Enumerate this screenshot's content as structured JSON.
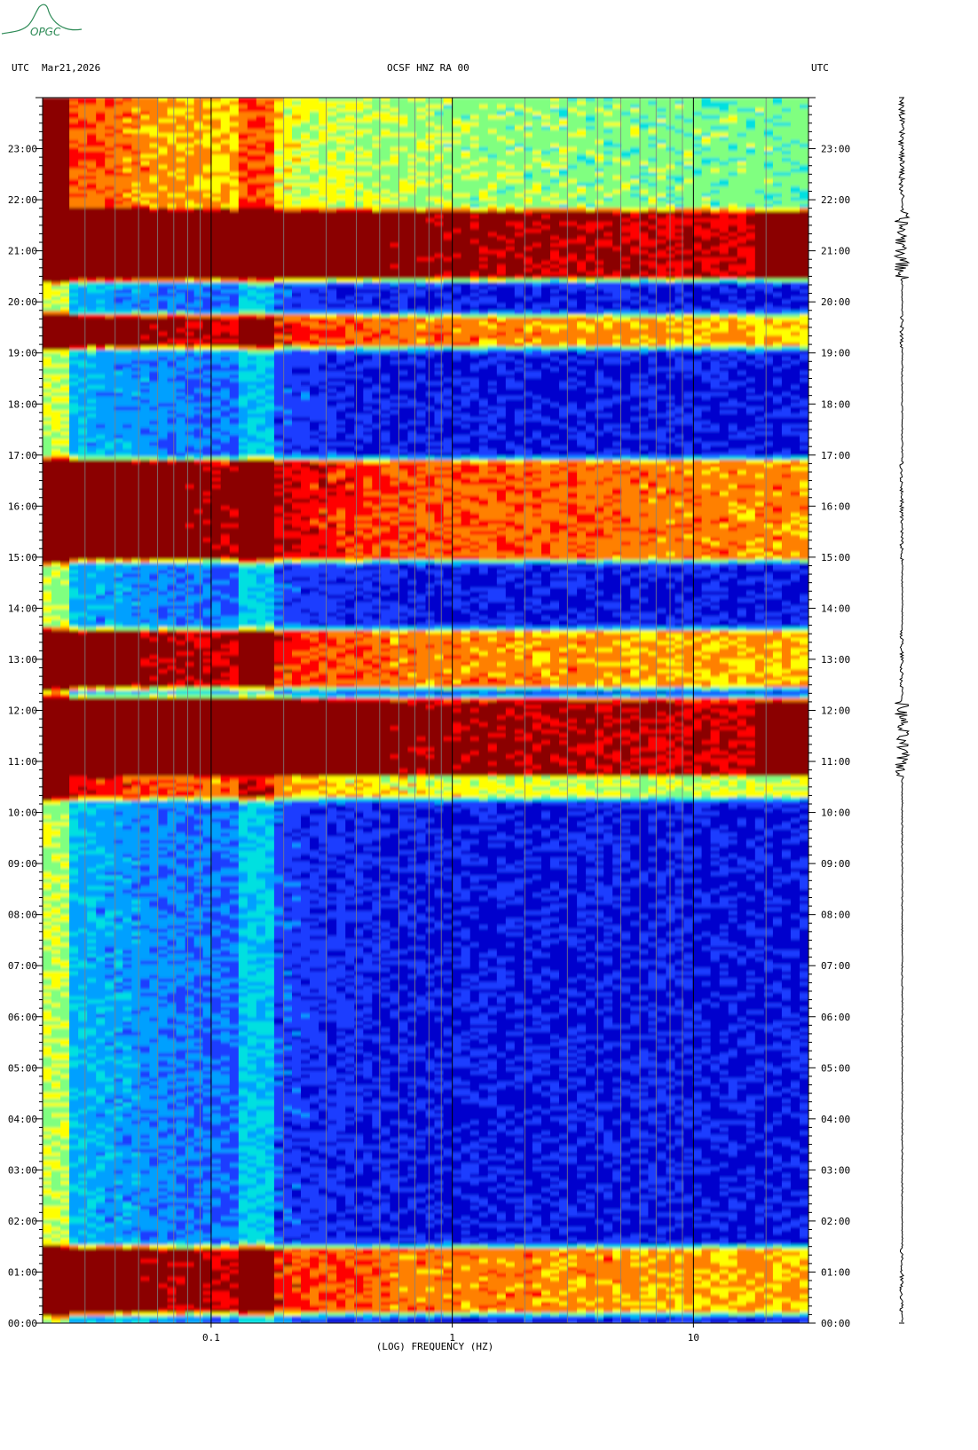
{
  "header": {
    "left_tz": "UTC",
    "date": "Mar21,2026",
    "station": "OCSF HNZ RA 00",
    "right_tz": "UTC"
  },
  "logo": {
    "text": "OPGC",
    "color": "#2e8b57"
  },
  "chart_data": {
    "type": "heatmap",
    "title": "OCSF HNZ RA 00",
    "xlabel": "(LOG) FREQUENCY (HZ)",
    "ylabel": "UTC",
    "x_scale": "log",
    "xlim_hz": [
      0.02,
      30
    ],
    "ylim_hours": [
      0,
      24
    ],
    "x_tick_labels": [
      {
        "value": 0.1,
        "label": "0.1"
      },
      {
        "value": 1,
        "label": "1"
      },
      {
        "value": 10,
        "label": "10"
      }
    ],
    "y_tick_labels": [
      "00:00",
      "01:00",
      "02:00",
      "03:00",
      "04:00",
      "05:00",
      "06:00",
      "07:00",
      "08:00",
      "09:00",
      "10:00",
      "11:00",
      "12:00",
      "13:00",
      "14:00",
      "15:00",
      "16:00",
      "17:00",
      "18:00",
      "19:00",
      "20:00",
      "21:00",
      "22:00",
      "23:00"
    ],
    "colormap": [
      "#00008b",
      "#0000cd",
      "#1e3cff",
      "#00a0ff",
      "#00e0e0",
      "#80ff80",
      "#ffff00",
      "#ff8000",
      "#ff0000",
      "#8b0000"
    ],
    "energy_bands": [
      {
        "start": "00:15",
        "end": "01:25",
        "level": 0.75
      },
      {
        "start": "10:20",
        "end": "10:35",
        "level": 0.6
      },
      {
        "start": "10:45",
        "end": "12:10",
        "level": 1.0
      },
      {
        "start": "12:30",
        "end": "13:30",
        "level": 0.75
      },
      {
        "start": "15:00",
        "end": "16:50",
        "level": 0.8
      },
      {
        "start": "19:10",
        "end": "19:40",
        "level": 0.75
      },
      {
        "start": "20:30",
        "end": "21:45",
        "level": 1.0
      },
      {
        "start": "21:45",
        "end": "24:00",
        "level": 0.5
      }
    ]
  },
  "trace": {
    "events": [
      "11:00-12:10",
      "20:45-21:30"
    ]
  }
}
